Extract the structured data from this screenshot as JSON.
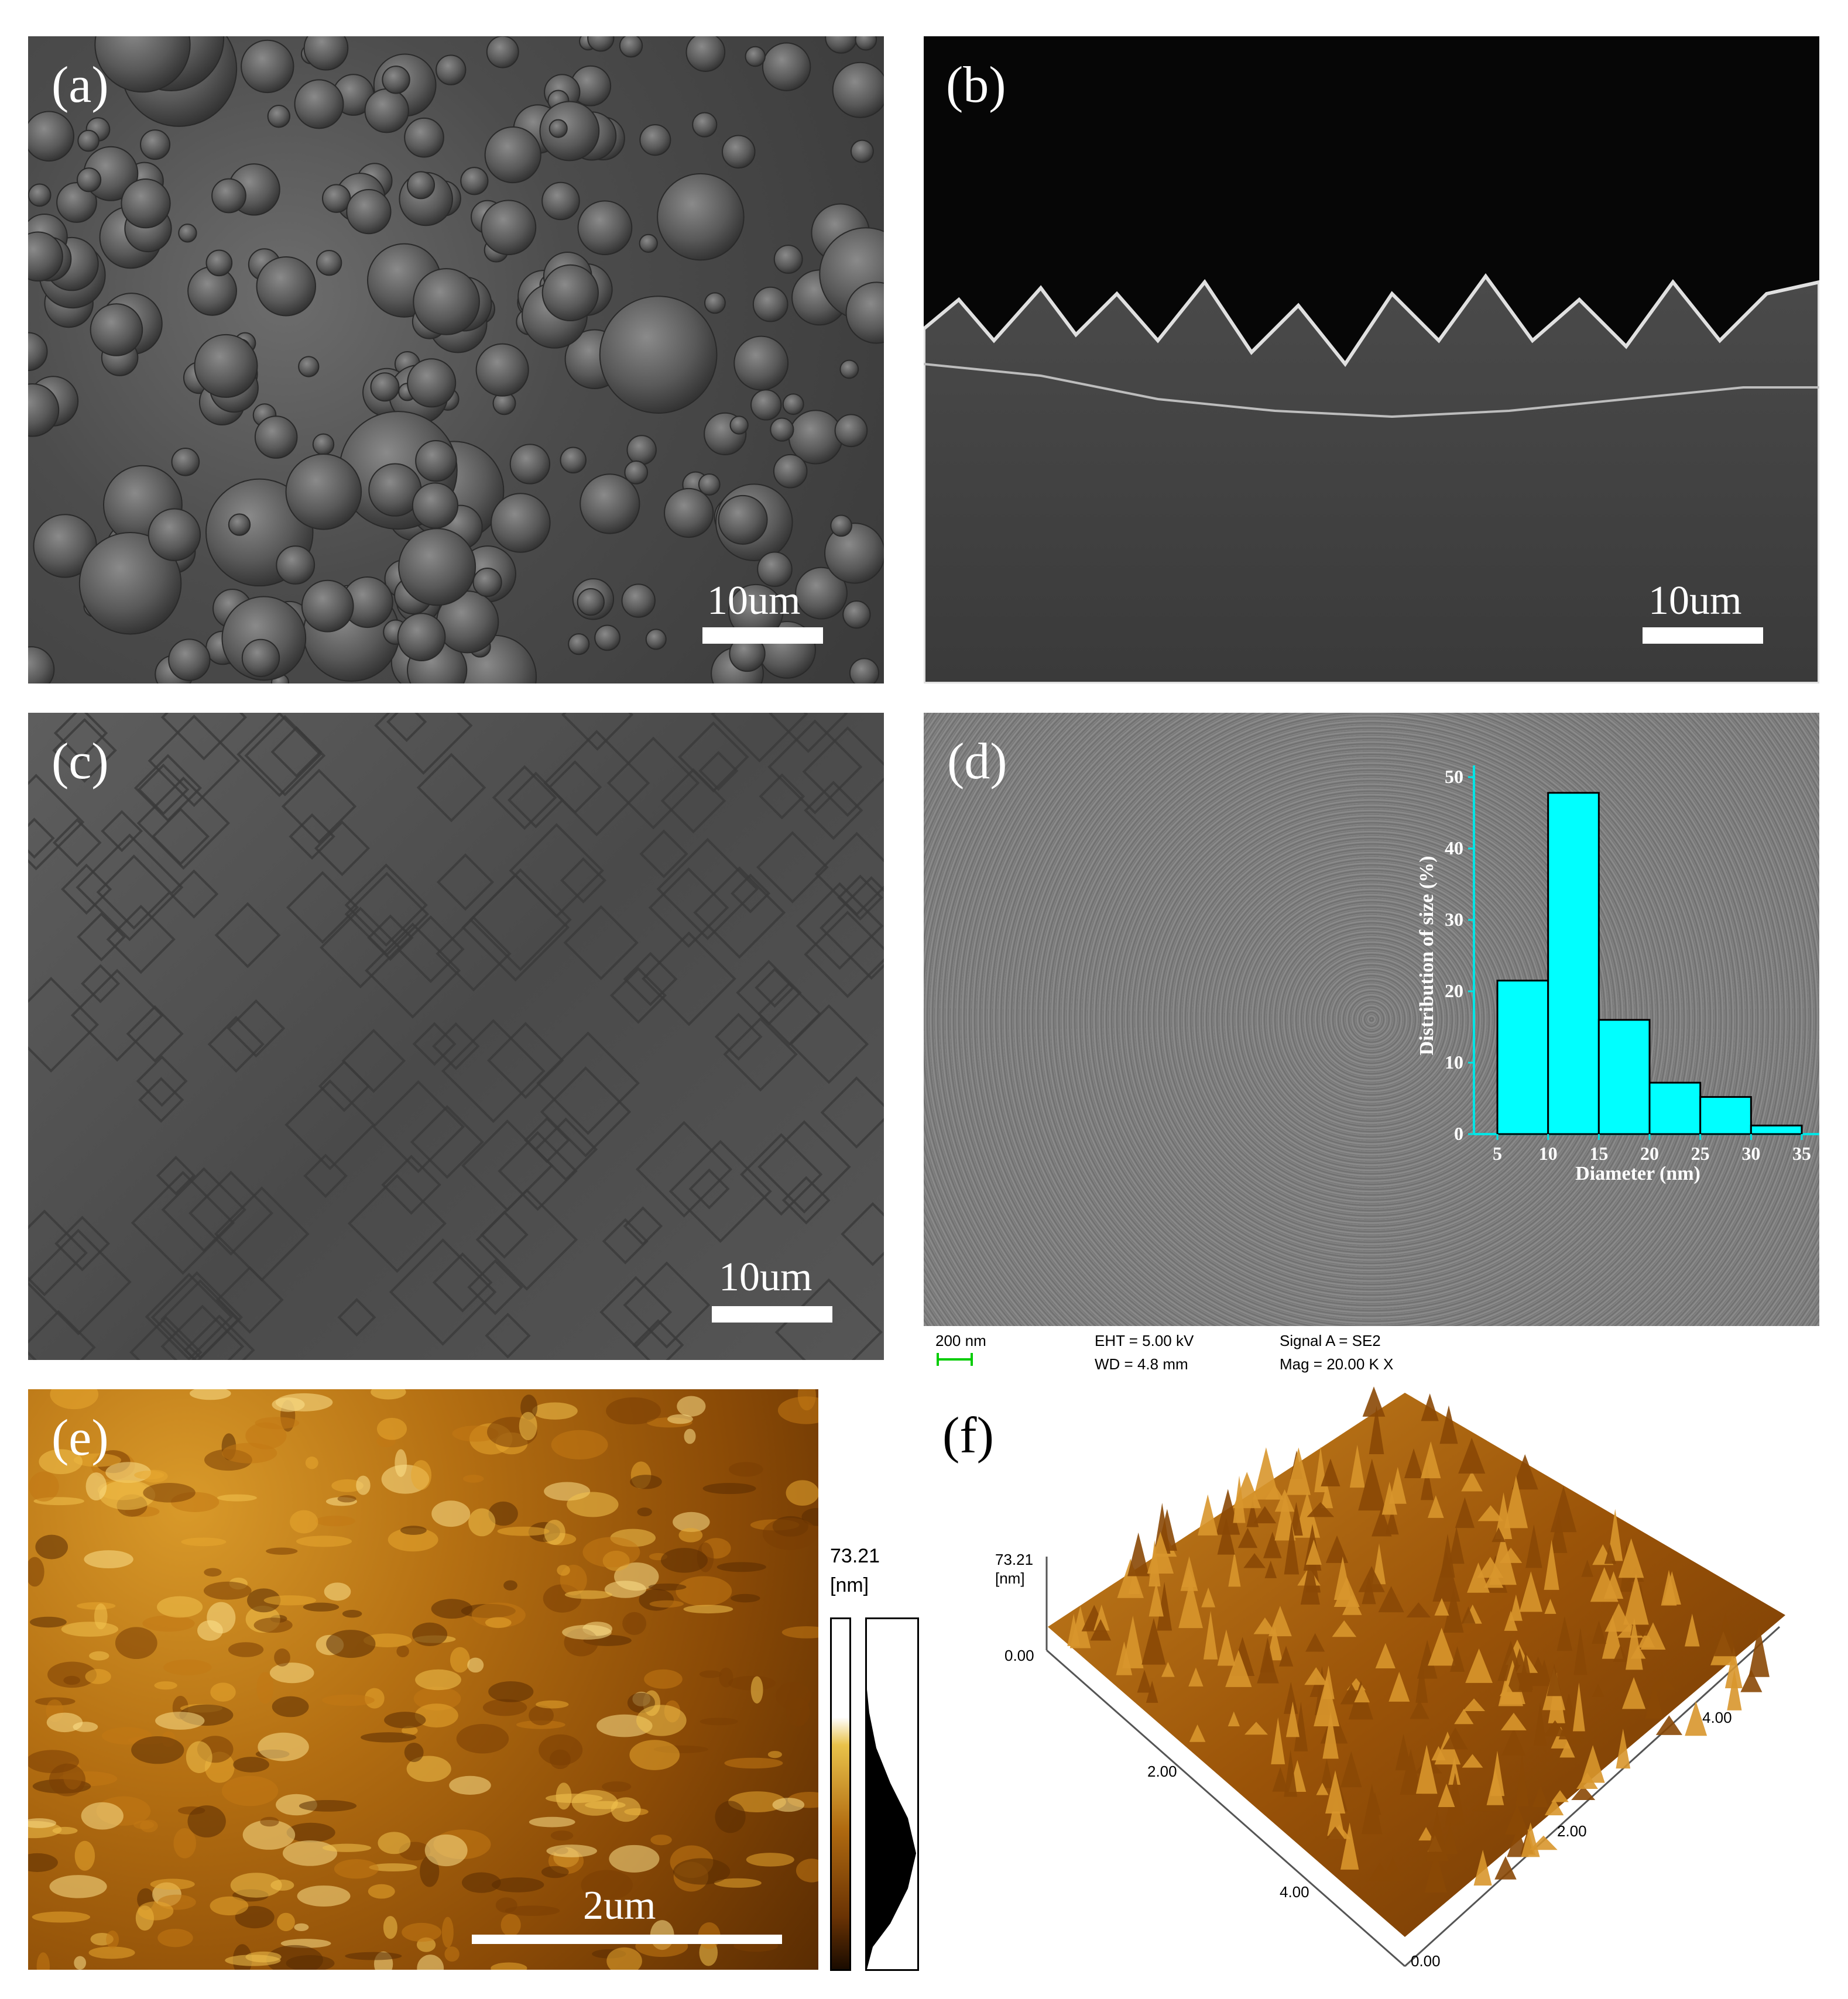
{
  "panels": {
    "a": {
      "label": "(a)",
      "scalebar": "10um"
    },
    "b": {
      "label": "(b)",
      "scalebar": "10um"
    },
    "c": {
      "label": "(c)",
      "scalebar": "10um"
    },
    "d": {
      "label": "(d)",
      "sem_info": {
        "scale": "200 nm",
        "eht": "EHT =  5.00 kV",
        "wd": "WD =  4.8 mm",
        "signal": "Signal A = SE2",
        "mag": "Mag =   20.00 K X"
      }
    },
    "e": {
      "label": "(e)",
      "scalebar": "2um",
      "colorbar_max": "73.21",
      "colorbar_unit": "[nm]"
    },
    "f": {
      "label": "(f)",
      "z_max": "73.21",
      "z_unit": "[nm]",
      "z_min": "0.00",
      "axis_ticks_left": [
        "2.00",
        "4.00"
      ],
      "axis_ticks_right": [
        "2.00",
        "4.00"
      ],
      "origin": "0.00"
    }
  },
  "colors": {
    "inset_bar": "#00ffff",
    "inset_axis": "#00e5e5",
    "afm_brown": "#a85e0a",
    "afm_highlight": "#f7d77a"
  },
  "chart_data": {
    "type": "bar",
    "categories": [
      "5-10",
      "10-15",
      "15-20",
      "20-25",
      "25-30",
      "30-35"
    ],
    "bin_edges": [
      5,
      10,
      15,
      20,
      25,
      30,
      35
    ],
    "values": [
      21.5,
      47.8,
      16.0,
      7.2,
      5.2,
      1.2
    ],
    "xlabel": "Diameter (nm)",
    "ylabel": "Distribution of size (%)",
    "xticks": [
      "5",
      "10",
      "15",
      "20",
      "25",
      "30",
      "35"
    ],
    "yticks": [
      "0",
      "10",
      "20",
      "30",
      "40",
      "50"
    ],
    "xlim": [
      5,
      35
    ],
    "ylim": [
      0,
      50
    ]
  }
}
